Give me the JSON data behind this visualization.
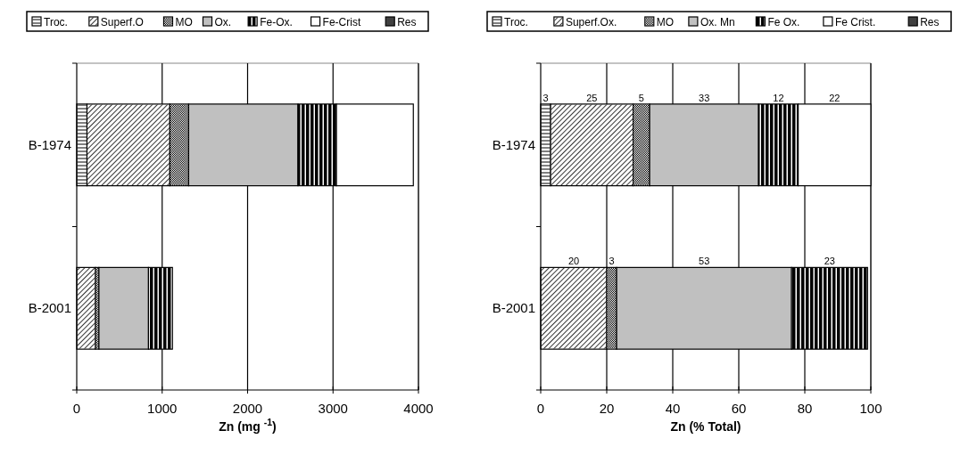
{
  "chart_data": [
    {
      "type": "bar",
      "orientation": "horizontal",
      "stacked": true,
      "xlabel": "Zn (mg $^{-1}$)",
      "categories": [
        "B-1974",
        "B-2001"
      ],
      "xlim": [
        0,
        4000
      ],
      "xticks": [
        0,
        1000,
        2000,
        3000,
        4000
      ],
      "grid": "x",
      "legend": "top",
      "series": [
        {
          "name": "Troc.",
          "color": "#ffffff",
          "values": [
            120,
            null
          ]
        },
        {
          "name": "Superf.O",
          "color": "#ffffff",
          "values": [
            970,
            220
          ]
        },
        {
          "name": "MO",
          "color": "#ffffff",
          "values": [
            220,
            40
          ]
        },
        {
          "name": "Ox.",
          "color": "#c0c0c0",
          "values": [
            1280,
            580
          ]
        },
        {
          "name": "Fe-Ox.",
          "color": "#000000",
          "values": [
            450,
            280
          ]
        },
        {
          "name": "Fe-Crist",
          "color": "#ffffff",
          "values": [
            900,
            null
          ]
        },
        {
          "name": "Res",
          "color": "#404040",
          "values": [
            null,
            null
          ]
        }
      ]
    },
    {
      "type": "bar",
      "orientation": "horizontal",
      "stacked": true,
      "xlabel": "Zn (% Total)",
      "categories": [
        "B-1974",
        "B-2001"
      ],
      "xlim": [
        0,
        100
      ],
      "xticks": [
        0,
        20,
        40,
        60,
        80,
        100
      ],
      "grid": "x",
      "legend": "top",
      "series": [
        {
          "name": "Troc.",
          "color": "#ffffff",
          "values": [
            3,
            null
          ],
          "value_labels": [
            "3",
            null
          ]
        },
        {
          "name": "Superf.Ox.",
          "color": "#ffffff",
          "values": [
            25,
            20
          ],
          "value_labels": [
            "25",
            "20"
          ]
        },
        {
          "name": "MO",
          "color": "#ffffff",
          "values": [
            5,
            3
          ],
          "value_labels": [
            "5",
            "3"
          ]
        },
        {
          "name": "Ox. Mn",
          "color": "#c0c0c0",
          "values": [
            33,
            53
          ],
          "value_labels": [
            "33",
            "53"
          ]
        },
        {
          "name": "Fe Ox.",
          "color": "#000000",
          "values": [
            12,
            23
          ],
          "value_labels": [
            "12",
            "23"
          ]
        },
        {
          "name": "Fe Crist.",
          "color": "#ffffff",
          "values": [
            22,
            null
          ],
          "value_labels": [
            "22",
            null
          ]
        },
        {
          "name": "Res",
          "color": "#404040",
          "values": [
            null,
            null
          ]
        }
      ]
    }
  ]
}
